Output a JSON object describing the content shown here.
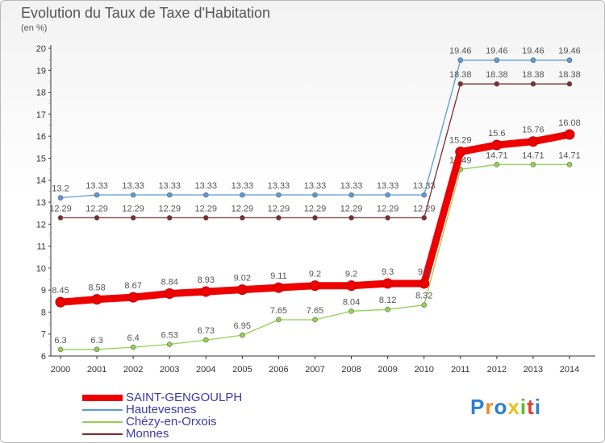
{
  "header": {
    "title": "Evolution du Taux de Taxe d'Habitation",
    "subtitle": "(en %)"
  },
  "logo": {
    "text": "Proxiti",
    "letters": [
      "P",
      "r",
      "o",
      "x",
      "i",
      "t",
      "i"
    ],
    "colors": [
      "#2a7fd4",
      "#f08c1e",
      "#2a7fd4",
      "#e8c21a",
      "#5cb82e",
      "#e23a2a",
      "#2a7fd4"
    ]
  },
  "chart_data": {
    "type": "line",
    "title": "Evolution du Taux de Taxe d'Habitation",
    "ylabel": "(en %)",
    "xlabel": "",
    "ylim": [
      6,
      20
    ],
    "yticks": [
      6,
      7,
      8,
      9,
      10,
      11,
      12,
      13,
      14,
      15,
      16,
      17,
      18,
      19,
      20
    ],
    "categories": [
      "2000",
      "2001",
      "2002",
      "2003",
      "2004",
      "2005",
      "2006",
      "2007",
      "2008",
      "2009",
      "2010",
      "2011",
      "2012",
      "2013",
      "2014"
    ],
    "grid": false,
    "legend_position": "bottom-left",
    "series": [
      {
        "name": "Hautevesnes",
        "color": "#5b9bd5",
        "values": [
          13.2,
          13.33,
          13.33,
          13.33,
          13.33,
          13.33,
          13.33,
          13.33,
          13.33,
          13.33,
          13.33,
          19.46,
          19.46,
          19.46,
          19.46
        ]
      },
      {
        "name": "Monnes",
        "color": "#7b2c2c",
        "values": [
          12.29,
          12.29,
          12.29,
          12.29,
          12.29,
          12.29,
          12.29,
          12.29,
          12.29,
          12.29,
          12.29,
          18.38,
          18.38,
          18.38,
          18.38
        ]
      },
      {
        "name": "Chézy-en-Orxois",
        "color": "#92d050",
        "values": [
          6.3,
          6.3,
          6.4,
          6.53,
          6.73,
          6.95,
          7.65,
          7.65,
          8.04,
          8.12,
          8.32,
          14.49,
          14.71,
          14.71,
          14.71
        ]
      },
      {
        "name": "SAINT-GENGOULPH",
        "color": "#ee0000",
        "values": [
          8.45,
          8.58,
          8.67,
          8.84,
          8.93,
          9.02,
          9.11,
          9.2,
          9.2,
          9.3,
          9.3,
          15.29,
          15.6,
          15.76,
          16.08
        ]
      }
    ],
    "legend": [
      "SAINT-GENGOULPH",
      "Hautevesnes",
      "Chézy-en-Orxois",
      "Monnes"
    ]
  }
}
